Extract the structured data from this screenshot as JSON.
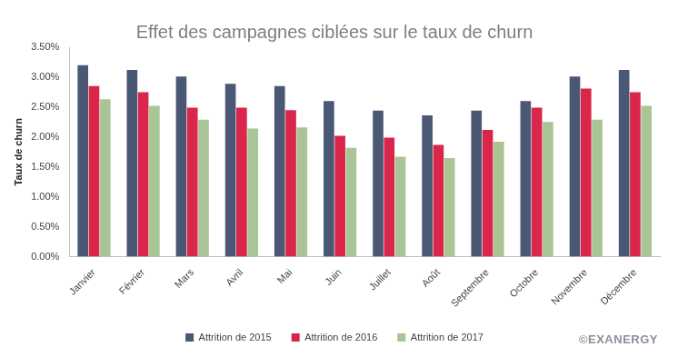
{
  "chart_data": {
    "type": "bar",
    "title": "Effet des campagnes ciblées sur le taux de churn",
    "y_label": "Taux de churn",
    "annotations": [
      "©EXANERGY"
    ],
    "categories": [
      "Janvier",
      "Février",
      "Mars",
      "Avril",
      "Mai",
      "Juin",
      "Juillet",
      "Août",
      "Septembre",
      "Octobre",
      "Novembre",
      "Décembre"
    ],
    "series": [
      {
        "name": "Attrition de 2015",
        "color": "#4a5775",
        "values": [
          3.2,
          3.12,
          3.01,
          2.89,
          2.85,
          2.6,
          2.44,
          2.36,
          2.44,
          2.6,
          3.01,
          3.12
        ]
      },
      {
        "name": "Attrition de 2016",
        "color": "#d9264a",
        "values": [
          2.85,
          2.75,
          2.49,
          2.49,
          2.45,
          2.02,
          1.99,
          1.87,
          2.12,
          2.49,
          2.81,
          2.75
        ]
      },
      {
        "name": "Attrition de 2017",
        "color": "#a9c495",
        "values": [
          2.63,
          2.52,
          2.29,
          2.14,
          2.16,
          1.82,
          1.67,
          1.65,
          1.92,
          2.25,
          2.29,
          2.52
        ]
      }
    ],
    "ylim": [
      0,
      3.5
    ],
    "yticks": [
      {
        "value": 0,
        "label": "0.00%"
      },
      {
        "value": 0.5,
        "label": "0.50%"
      },
      {
        "value": 1,
        "label": "1.00%"
      },
      {
        "value": 1.5,
        "label": "1.50%"
      },
      {
        "value": 2,
        "label": "2.00%"
      },
      {
        "value": 2.5,
        "label": "2.50%"
      },
      {
        "value": 3,
        "label": "3.00%"
      },
      {
        "value": 3.5,
        "label": "3.50%"
      }
    ],
    "grid": false,
    "legend": "bottom"
  }
}
